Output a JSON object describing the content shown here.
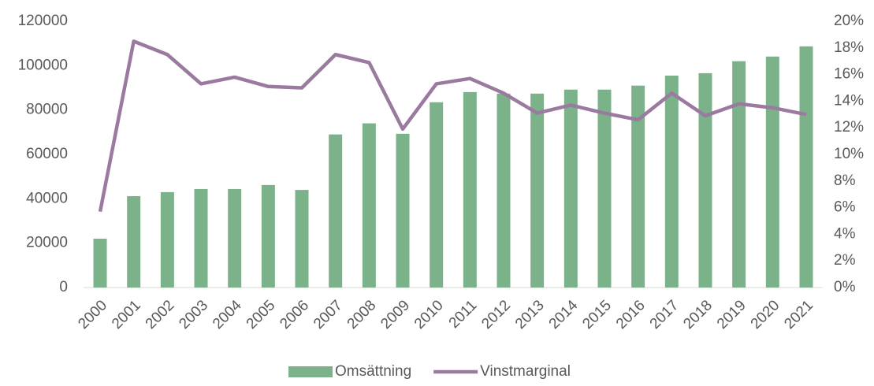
{
  "chart_data": {
    "type": "bar_line",
    "categories": [
      "2000",
      "2001",
      "2002",
      "2003",
      "2004",
      "2005",
      "2006",
      "2007",
      "2008",
      "2009",
      "2010",
      "2011",
      "2012",
      "2013",
      "2014",
      "2015",
      "2016",
      "2017",
      "2018",
      "2019",
      "2020",
      "2021"
    ],
    "series": [
      {
        "name": "Omsättning",
        "type": "bar",
        "color": "#7bb28a",
        "values": [
          22000,
          41200,
          43000,
          44400,
          44400,
          46200,
          44000,
          69000,
          74000,
          69300,
          83500,
          88100,
          87400,
          87400,
          89200,
          89200,
          91000,
          95500,
          96600,
          102000,
          104100,
          108700
        ]
      },
      {
        "name": "Vinstmarginal",
        "type": "line",
        "axis": "y2",
        "color": "#9b7aa0",
        "values": [
          5.7,
          18.5,
          17.5,
          15.3,
          15.8,
          15.1,
          15.0,
          17.5,
          16.9,
          11.9,
          15.3,
          15.7,
          14.6,
          13.1,
          13.7,
          13.1,
          12.6,
          14.6,
          12.9,
          13.8,
          13.5,
          13.0
        ]
      }
    ],
    "ylim": [
      0,
      120000
    ],
    "yticks": [
      0,
      20000,
      40000,
      60000,
      80000,
      100000,
      120000
    ],
    "y2lim": [
      0,
      20
    ],
    "y2ticks": [
      {
        "value": 0,
        "label": "0%"
      },
      {
        "value": 2,
        "label": "2%"
      },
      {
        "value": 4,
        "label": "4%"
      },
      {
        "value": 6,
        "label": "6%"
      },
      {
        "value": 8,
        "label": "8%"
      },
      {
        "value": 10,
        "label": "10%"
      },
      {
        "value": 12,
        "label": "12%"
      },
      {
        "value": 14,
        "label": "14%"
      },
      {
        "value": 16,
        "label": "16%"
      },
      {
        "value": 18,
        "label": "18%"
      },
      {
        "value": 20,
        "label": "20%"
      }
    ],
    "legend": "bottom"
  }
}
